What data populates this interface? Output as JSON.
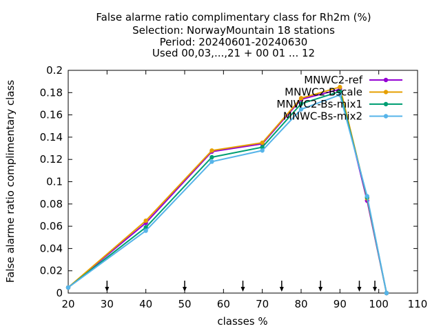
{
  "chart_data": {
    "type": "line",
    "title_lines": [
      "False alarme ratio complimentary class  for Rh2m (%)",
      "Selection: NorwayMountain     18 stations",
      "Period: 20240601-20240630",
      "Used 00,03,...,21 + 00 01 ... 12"
    ],
    "xlabel": "classes %",
    "ylabel": "False alarme ratio complimentary class",
    "xlim": [
      20,
      110
    ],
    "ylim": [
      0,
      0.2
    ],
    "xticks": [
      20,
      30,
      40,
      50,
      60,
      70,
      80,
      90,
      100,
      110
    ],
    "xtick_labels": [
      "20",
      "30",
      "40",
      "50",
      "60",
      "70",
      "80",
      "90",
      "100",
      "110"
    ],
    "yticks": [
      0,
      0.02,
      0.04,
      0.06,
      0.08,
      0.1,
      0.12,
      0.14,
      0.16,
      0.18,
      0.2
    ],
    "ytick_labels": [
      "0",
      "0.02",
      "0.04",
      "0.06",
      "0.08",
      "0.1",
      "0.12",
      "0.14",
      "0.16",
      "0.18",
      "0.2"
    ],
    "grid": false,
    "legend_position": "top-right",
    "class_markers_x": [
      30,
      50,
      65,
      75,
      85,
      95,
      99
    ],
    "series": [
      {
        "name": "MNWC2-ref",
        "color": "#9400d3",
        "x": [
          20,
          40,
          57,
          70,
          80,
          90,
          97,
          102
        ],
        "y": [
          0.005,
          0.063,
          0.127,
          0.134,
          0.174,
          0.183,
          0.083,
          0.0
        ]
      },
      {
        "name": "MNWC2-Bscale",
        "color": "#e69f00",
        "x": [
          20,
          40,
          57,
          70,
          80,
          90,
          97,
          102
        ],
        "y": [
          0.005,
          0.065,
          0.128,
          0.135,
          0.175,
          0.185,
          0.085,
          0.0
        ]
      },
      {
        "name": "MNWC2-Bs-mix1",
        "color": "#009e73",
        "x": [
          20,
          40,
          57,
          70,
          80,
          90,
          97,
          102
        ],
        "y": [
          0.005,
          0.059,
          0.122,
          0.131,
          0.17,
          0.181,
          0.086,
          0.0
        ]
      },
      {
        "name": "MNWC-Bs-mix2",
        "color": "#56b4e9",
        "x": [
          20,
          40,
          57,
          70,
          80,
          90,
          97,
          102
        ],
        "y": [
          0.005,
          0.056,
          0.118,
          0.128,
          0.165,
          0.178,
          0.087,
          0.0
        ]
      }
    ]
  }
}
